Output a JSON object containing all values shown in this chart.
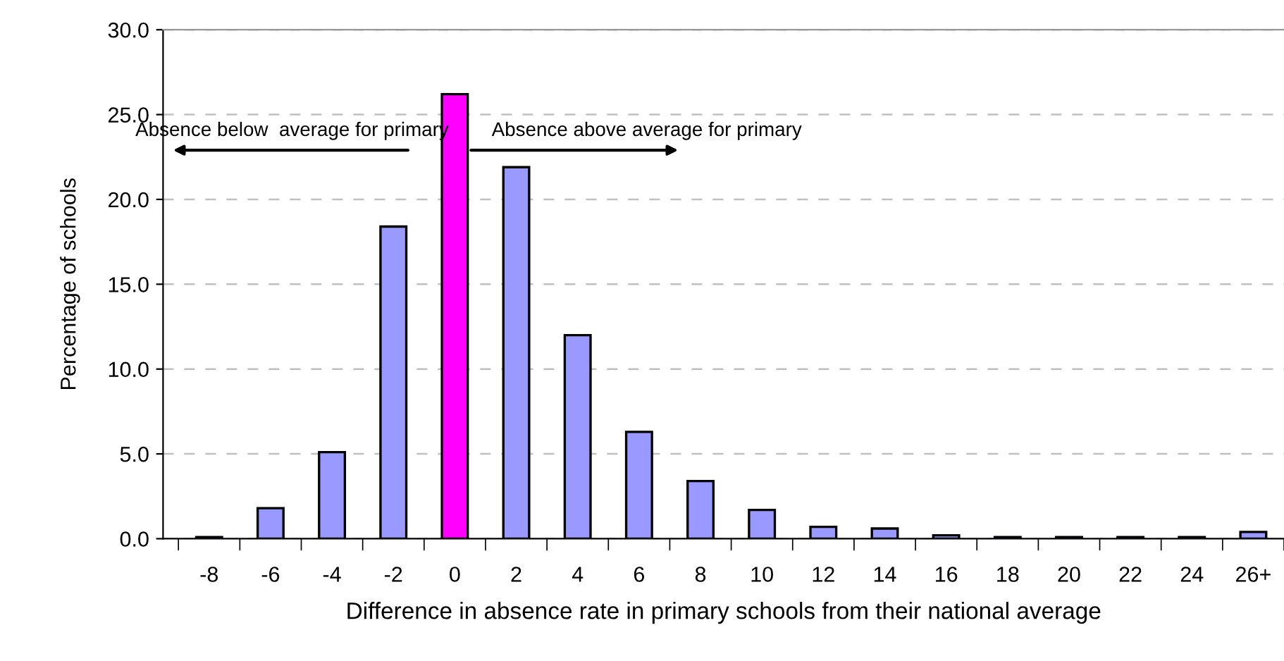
{
  "chart_data": {
    "type": "bar",
    "xlabel": "Difference in absence rate in primary schools from their national average",
    "ylabel": "Percentage of schools",
    "categories": [
      "-8",
      "-6",
      "-4",
      "-2",
      "0",
      "2",
      "4",
      "6",
      "8",
      "10",
      "12",
      "14",
      "16",
      "18",
      "20",
      "22",
      "24",
      "26+"
    ],
    "values": [
      0.1,
      1.8,
      5.1,
      18.4,
      26.2,
      21.9,
      12.0,
      6.3,
      3.4,
      1.7,
      0.7,
      0.6,
      0.2,
      0.1,
      0.1,
      0.1,
      0.1,
      0.4
    ],
    "colors": [
      "#9999ff",
      "#9999ff",
      "#9999ff",
      "#9999ff",
      "#ff00ff",
      "#9999ff",
      "#9999ff",
      "#9999ff",
      "#9999ff",
      "#9999ff",
      "#9999ff",
      "#9999ff",
      "#9999ff",
      "#9999ff",
      "#9999ff",
      "#9999ff",
      "#9999ff",
      "#9999ff"
    ],
    "ylim": [
      0,
      30
    ],
    "yticks": [
      {
        "value": 0,
        "label": "0.0"
      },
      {
        "value": 5,
        "label": "5.0"
      },
      {
        "value": 10,
        "label": "10.0"
      },
      {
        "value": 15,
        "label": "15.0"
      },
      {
        "value": 20,
        "label": "20.0"
      },
      {
        "value": 25,
        "label": "25.0"
      },
      {
        "value": 30,
        "label": "30.0"
      }
    ],
    "grid": "y",
    "annotations": [
      "Absence below  average for primary",
      "Absence above average for primary"
    ]
  }
}
